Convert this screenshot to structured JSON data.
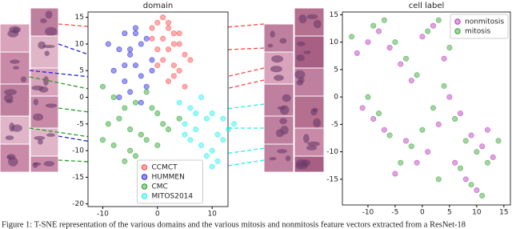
{
  "chart_data": [
    {
      "type": "scatter",
      "title": "domain",
      "legend": "lower center",
      "grid": false,
      "xlim": [
        -12.7,
        12.9
      ],
      "ylim": [
        -20.5,
        16
      ],
      "xticks": [
        -10,
        0,
        10
      ],
      "yticks": [
        15,
        10,
        5,
        0,
        -5,
        -10,
        -15,
        -20
      ],
      "series": [
        {
          "name": "CCMCT",
          "color": "#ff4444",
          "x": [
            0,
            2,
            3,
            1,
            4,
            -1,
            2,
            5,
            3,
            0,
            1,
            4,
            2,
            -1,
            3,
            6,
            1,
            2,
            4,
            0,
            3,
            5
          ],
          "values": [
            14,
            13,
            12,
            11,
            10,
            13,
            9,
            8,
            6,
            9,
            7,
            5,
            14,
            11,
            4,
            7,
            15,
            3,
            12,
            6,
            10,
            2
          ]
        },
        {
          "name": "HUMMEN",
          "color": "#2222dd",
          "x": [
            -6,
            -4,
            -3,
            -7,
            -5,
            -2,
            -8,
            -4,
            -1,
            -6,
            -3,
            -5,
            -9,
            -2,
            -7,
            -4,
            -3,
            -6,
            -1,
            -5
          ],
          "values": [
            12,
            13,
            10,
            9,
            8,
            11,
            5,
            6,
            7,
            3,
            4,
            1,
            10,
            2,
            0,
            12,
            -1,
            6,
            5,
            9
          ]
        },
        {
          "name": "CMC",
          "color": "#22a022",
          "x": [
            -10,
            -8,
            -6,
            -4,
            -2,
            0,
            -9,
            -7,
            -5,
            -3,
            -1,
            1,
            -8,
            -5,
            -2,
            2,
            -6,
            -4,
            0,
            -3,
            4,
            -10
          ],
          "values": [
            2,
            0,
            -2,
            -1,
            1,
            -3,
            -5,
            -4,
            -6,
            -7,
            -2,
            -5,
            -9,
            -10,
            -8,
            -6,
            -12,
            -11,
            -9,
            -13,
            -4,
            -8
          ]
        },
        {
          "name": "MITOS2014",
          "color": "#22eeee",
          "x": [
            4,
            6,
            8,
            10,
            12,
            5,
            7,
            9,
            11,
            13,
            6,
            8,
            10,
            12,
            9,
            11,
            7,
            5,
            14,
            10
          ],
          "values": [
            -1,
            -2,
            0,
            -3,
            -4,
            -5,
            -6,
            -4,
            -7,
            -6,
            -8,
            -9,
            -10,
            -8,
            -11,
            -12,
            -3,
            -7,
            -5,
            -13
          ]
        }
      ]
    },
    {
      "type": "scatter",
      "title": "cell label",
      "legend": "upper right",
      "grid": false,
      "xlim": [
        -14.7,
        16.2
      ],
      "ylim": [
        -19.7,
        15.5
      ],
      "xticks": [
        -10,
        -5,
        0,
        5,
        10,
        15
      ],
      "yticks": [
        15,
        10,
        5,
        0,
        -5,
        -10,
        -15
      ],
      "series": [
        {
          "name": "nonmitosis",
          "color": "#b535b5",
          "x": [
            -12,
            -10,
            -8,
            -6,
            -4,
            -2,
            0,
            2,
            4,
            -11,
            -9,
            -7,
            -3,
            1,
            3,
            5,
            7,
            9,
            11,
            13,
            -5,
            6,
            8,
            10,
            -1,
            12
          ],
          "values": [
            8,
            10,
            12,
            9,
            6,
            3,
            11,
            13,
            7,
            -2,
            -4,
            -6,
            -8,
            -10,
            -5,
            0,
            -3,
            -7,
            -9,
            -11,
            -14,
            -12,
            -15,
            -17,
            -12,
            -6
          ]
        },
        {
          "name": "mitosis",
          "color": "#30a030",
          "x": [
            -13,
            -9,
            -7,
            -5,
            -3,
            -1,
            1,
            3,
            5,
            -10,
            -8,
            -6,
            -2,
            0,
            2,
            4,
            6,
            8,
            10,
            12,
            -4,
            7,
            9,
            11,
            3,
            14
          ],
          "values": [
            11,
            13,
            14,
            10,
            7,
            4,
            12,
            14,
            9,
            0,
            -3,
            -7,
            -9,
            -6,
            -2,
            2,
            -4,
            -8,
            -10,
            -12,
            -12,
            -13,
            -16,
            -18,
            -15,
            -8
          ]
        }
      ]
    }
  ],
  "caption": "Figure 1: T-SNE representation of the various domains and the various mitosis and nonmitosis feature vectors extracted from a ResNet-18"
}
